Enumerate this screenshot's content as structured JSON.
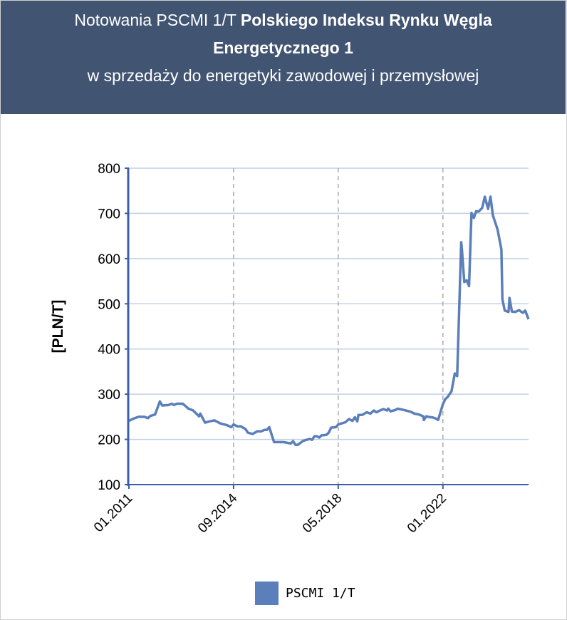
{
  "header": {
    "title_line1_plain": "Notowania PSCMI 1/T ",
    "title_line1_bold": "Polskiego Indeksu Rynku Węgla",
    "title_line2_bold": "Energetycznego 1",
    "title_line3": "w sprzedaży do energetyki zawodowej i przemysłowej"
  },
  "colors": {
    "header_bg": "#415472",
    "series": "#5a7fbb",
    "grid": "#c3d0e2",
    "vgrid": "#aaaaaa"
  },
  "chart_data": {
    "type": "line",
    "ylabel": "[PLN/T]",
    "ylim": [
      100,
      800
    ],
    "yticks": [
      100,
      200,
      300,
      400,
      500,
      600,
      700,
      800
    ],
    "x_unit": "months since 01.2011",
    "xlim": [
      0,
      168
    ],
    "xticks": [
      {
        "x": 0,
        "label": "01.2011"
      },
      {
        "x": 44,
        "label": "09.2014"
      },
      {
        "x": 88,
        "label": "05.2018"
      },
      {
        "x": 132,
        "label": "01.2022"
      }
    ],
    "legend": {
      "position": "bottom",
      "entries": [
        "PSCMI 1/T"
      ]
    },
    "series": [
      {
        "name": "PSCMI 1/T",
        "x": [
          0,
          1.5,
          4,
          6.5,
          8,
          9,
          11,
          13,
          14,
          16.6,
          18,
          19,
          20,
          22.6,
          24,
          25,
          27,
          29.5,
          30,
          32,
          34,
          36,
          38.6,
          41,
          43,
          44,
          45.5,
          47,
          49,
          50,
          52,
          54,
          55.6,
          57,
          58,
          59,
          61,
          65,
          68,
          69,
          70,
          71,
          73,
          74,
          76,
          77,
          78,
          79,
          80,
          81,
          83,
          84,
          85,
          87,
          88,
          91,
          92.5,
          94,
          95,
          96,
          96.5,
          98,
          99,
          100,
          101.5,
          103,
          104,
          106,
          107,
          108.5,
          109,
          110,
          112,
          113,
          115.6,
          118.6,
          120,
          122,
          123.7,
          124,
          125,
          126.6,
          127.5,
          129,
          130,
          132,
          133,
          134,
          135.6,
          137,
          138,
          139.7,
          140,
          141,
          142,
          143,
          144,
          145,
          146,
          147,
          148.5,
          149.6,
          151,
          152,
          153,
          155,
          156.6,
          157,
          158,
          159.6,
          160,
          161,
          162.5,
          164,
          165.6,
          166.6,
          168
        ],
        "y": [
          241,
          245,
          250,
          250,
          247,
          252,
          255,
          284,
          275,
          276,
          279,
          276,
          279,
          279,
          273,
          268,
          264,
          251,
          257,
          237,
          240,
          242,
          235,
          232,
          227,
          233,
          229,
          229,
          223,
          215,
          212,
          218,
          218,
          221,
          221,
          227,
          194,
          194,
          191,
          196,
          188,
          188,
          196,
          198,
          201,
          199,
          207,
          207,
          204,
          209,
          210,
          215,
          226,
          227,
          233,
          238,
          245,
          241,
          249,
          240,
          254,
          254,
          257,
          260,
          257,
          264,
          260,
          265,
          267,
          264,
          268,
          262,
          265,
          268,
          265,
          261,
          257,
          255,
          251,
          243,
          251,
          249,
          249,
          246,
          243,
          278,
          289,
          294,
          306,
          346,
          340,
          636,
          620,
          548,
          552,
          539,
          701,
          690,
          705,
          704,
          712,
          737,
          710,
          737,
          696,
          664,
          620,
          510,
          485,
          482,
          513,
          483,
          482,
          486,
          480,
          485,
          466
        ]
      }
    ]
  }
}
